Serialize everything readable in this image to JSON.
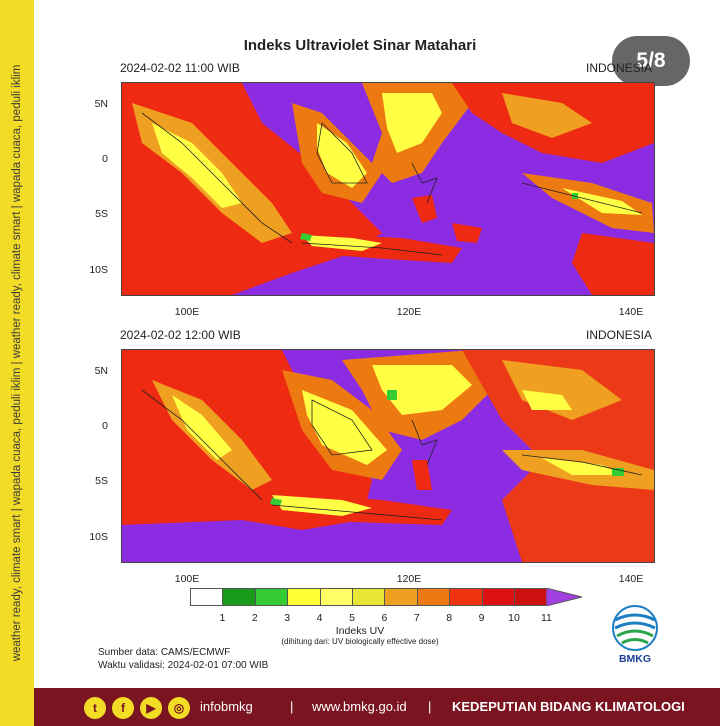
{
  "side_text": "weather ready, climate smart | wapada cuaca, peduli iklim | weather ready, climate smart | wapada cuaca, peduli iklim",
  "title": "Indeks Ultraviolet Sinar Matahari",
  "page_indicator": "5/8",
  "maps": [
    {
      "time_label": "2024-02-02  11:00 WIB",
      "region_label": "INDONESIA"
    },
    {
      "time_label": "2024-02-02  12:00 WIB",
      "region_label": "INDONESIA"
    }
  ],
  "lat_ticks": [
    "5N",
    "0",
    "5S",
    "10S"
  ],
  "lon_ticks": [
    "100E",
    "120E",
    "140E"
  ],
  "colorbar": {
    "ticks": [
      "1",
      "2",
      "3",
      "4",
      "5",
      "6",
      "7",
      "8",
      "9",
      "10",
      "11"
    ],
    "colors": [
      "#ffffff",
      "#1a9a1a",
      "#33cc33",
      "#ffff33",
      "#ffff66",
      "#e6e633",
      "#f0a020",
      "#ec7a10",
      "#ee3311",
      "#dd1111",
      "#cc0f0f",
      "#a040e0"
    ],
    "title": "Indeks UV",
    "subtitle": "(dihitung dari: UV biologically effective dose)"
  },
  "source": {
    "line1": "Sumber data: CAMS/ECMWF",
    "line2": "Waktu validasi: 2024-02-01 07:00 WIB"
  },
  "logo_text": "BMKG",
  "footer": {
    "social_handle": "infobmkg",
    "separator": "|",
    "website": "www.bmkg.go.id",
    "unit": "KEDEPUTIAN BIDANG KLIMATOLOGI"
  },
  "colors": {
    "strip": "#f3dc25",
    "footer": "#7b1421",
    "ocean": "#8b2be2"
  },
  "icons": [
    "twitter-icon",
    "facebook-icon",
    "youtube-icon",
    "instagram-icon"
  ]
}
